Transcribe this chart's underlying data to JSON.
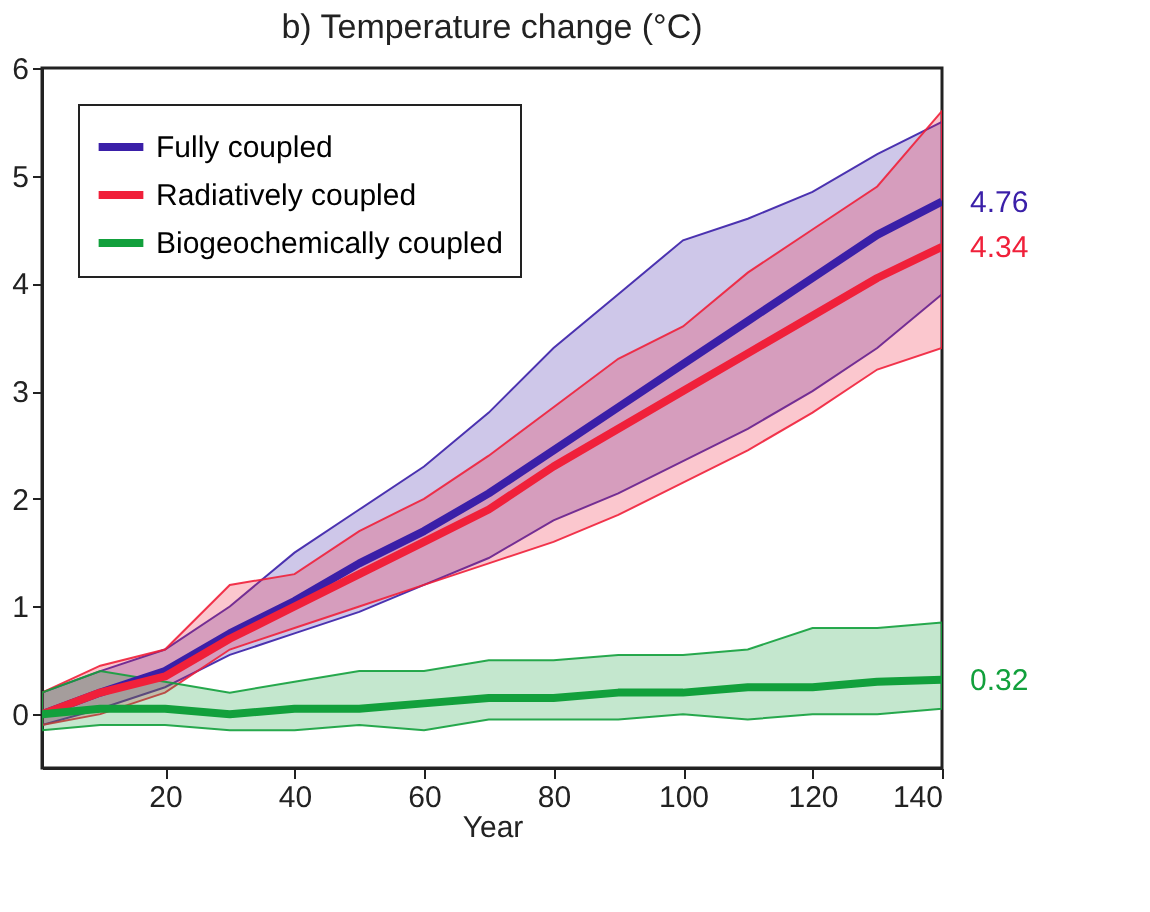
{
  "chart_data": {
    "type": "line",
    "title": "b) Temperature change (°C)",
    "xlabel": "Year",
    "x": [
      1,
      10,
      20,
      30,
      40,
      50,
      60,
      70,
      80,
      90,
      100,
      110,
      120,
      130,
      140
    ],
    "series": [
      {
        "name": "Fully coupled",
        "color": "#3a1fa8",
        "values": [
          0,
          0.2,
          0.4,
          0.75,
          1.05,
          1.4,
          1.7,
          2.05,
          2.45,
          2.85,
          3.25,
          3.65,
          4.05,
          4.45,
          4.76
        ],
        "lower": [
          -0.1,
          0.05,
          0.25,
          0.55,
          0.75,
          0.95,
          1.2,
          1.45,
          1.8,
          2.05,
          2.35,
          2.65,
          3.0,
          3.4,
          3.9
        ],
        "upper": [
          0.2,
          0.4,
          0.6,
          1.0,
          1.5,
          1.9,
          2.3,
          2.8,
          3.4,
          3.9,
          4.4,
          4.6,
          4.85,
          5.2,
          5.5
        ],
        "value_labels": [
          null,
          null,
          null,
          null,
          null,
          null,
          null,
          null,
          null,
          null,
          null,
          null,
          null,
          null,
          "4.76"
        ]
      },
      {
        "name": "Radiatively coupled",
        "color": "#f0203a",
        "values": [
          0,
          0.2,
          0.35,
          0.7,
          1.0,
          1.3,
          1.6,
          1.9,
          2.3,
          2.65,
          3.0,
          3.35,
          3.7,
          4.05,
          4.34
        ],
        "lower": [
          -0.1,
          0.0,
          0.2,
          0.6,
          0.8,
          1.0,
          1.2,
          1.4,
          1.6,
          1.85,
          2.15,
          2.45,
          2.8,
          3.2,
          3.4
        ],
        "upper": [
          0.2,
          0.45,
          0.6,
          1.2,
          1.3,
          1.7,
          2.0,
          2.4,
          2.85,
          3.3,
          3.6,
          4.1,
          4.5,
          4.9,
          5.6
        ],
        "value_labels": [
          null,
          null,
          null,
          null,
          null,
          null,
          null,
          null,
          null,
          null,
          null,
          null,
          null,
          null,
          "4.34"
        ]
      },
      {
        "name": "Biogeochemically coupled",
        "color": "#12a03c",
        "values": [
          0,
          0.05,
          0.05,
          0.0,
          0.05,
          0.05,
          0.1,
          0.15,
          0.15,
          0.2,
          0.2,
          0.25,
          0.25,
          0.3,
          0.32
        ],
        "lower": [
          -0.15,
          -0.1,
          -0.1,
          -0.15,
          -0.15,
          -0.1,
          -0.15,
          -0.05,
          -0.05,
          -0.05,
          0.0,
          -0.05,
          0.0,
          0.0,
          0.05
        ],
        "upper": [
          0.2,
          0.4,
          0.3,
          0.2,
          0.3,
          0.4,
          0.4,
          0.5,
          0.5,
          0.55,
          0.55,
          0.6,
          0.8,
          0.8,
          0.85
        ],
        "value_labels": [
          null,
          null,
          null,
          null,
          null,
          null,
          null,
          null,
          null,
          null,
          null,
          null,
          null,
          null,
          "0.32"
        ]
      }
    ],
    "xlim": [
      1,
      140
    ],
    "xticks": [
      20,
      40,
      60,
      80,
      100,
      120,
      140
    ],
    "ylim": [
      -0.5,
      6
    ],
    "yticks": [
      0,
      1,
      2,
      3,
      4,
      5,
      6
    ],
    "grid": false,
    "legend": "top left",
    "line_style": "solid",
    "marker": "none"
  }
}
